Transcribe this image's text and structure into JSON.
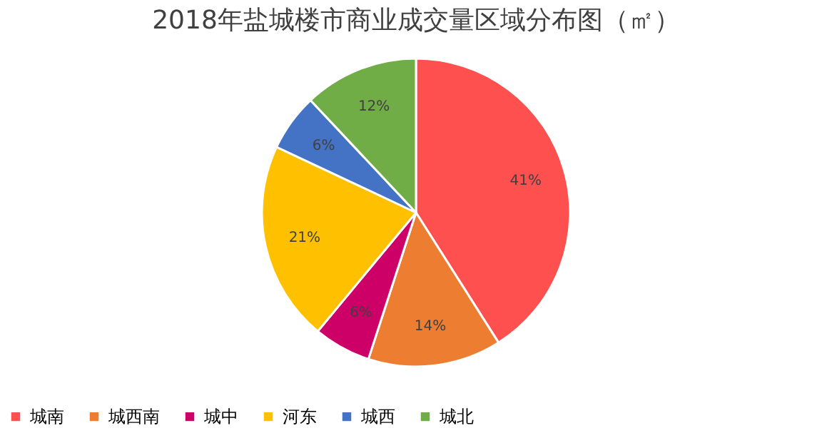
{
  "chart_data": {
    "type": "pie",
    "title": "2018年盐城楼市商业成交量区域分布图（㎡）",
    "categories": [
      "城南",
      "城西南",
      "城中",
      "河东",
      "城西",
      "城北"
    ],
    "values": [
      41,
      14,
      6,
      21,
      6,
      12
    ],
    "colors": [
      "#ff5050",
      "#ed7d31",
      "#cc0066",
      "#ffc000",
      "#4472c4",
      "#70ad47"
    ],
    "value_labels": [
      "41%",
      "14%",
      "6%",
      "21%",
      "6%",
      "12%"
    ],
    "legend": "bottom"
  }
}
